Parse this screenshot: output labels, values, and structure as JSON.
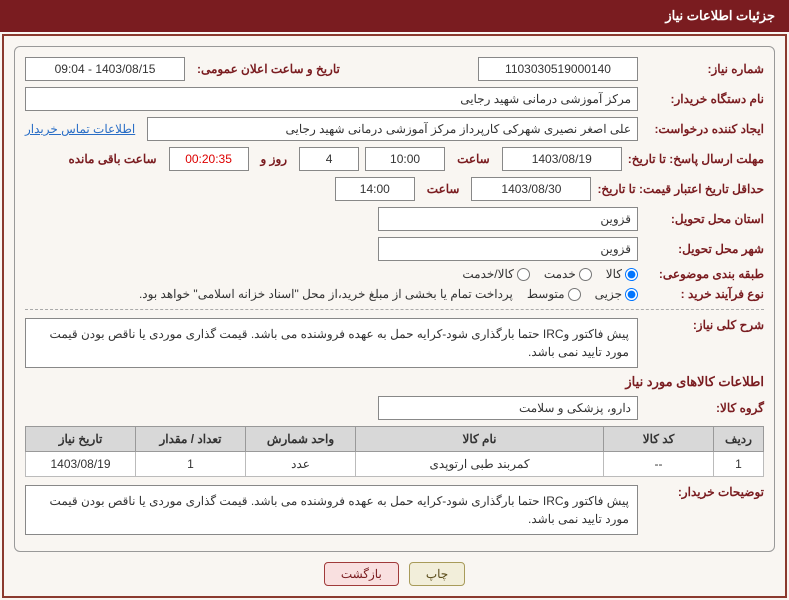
{
  "title": "جزئیات اطلاعات نیاز",
  "fields": {
    "need_number_label": "شماره نیاز:",
    "need_number": "1103030519000140",
    "announce_label": "تاریخ و ساعت اعلان عمومی:",
    "announce_value": "1403/08/15 - 09:04",
    "buyer_org_label": "نام دستگاه خریدار:",
    "buyer_org": "مرکز آموزشی درمانی شهید رجایی",
    "requester_label": "ایجاد کننده درخواست:",
    "requester": "علی اصغر نصیری شهرکی کارپرداز مرکز آموزشی درمانی شهید رجایی",
    "contact_link": "اطلاعات تماس خریدار",
    "response_deadline_label": "مهلت ارسال پاسخ: تا تاریخ:",
    "response_date": "1403/08/19",
    "time_label": "ساعت",
    "response_time": "10:00",
    "days_count": "4",
    "days_and": "روز و",
    "remaining_time": "00:20:35",
    "remaining_label": "ساعت باقی مانده",
    "validity_label": "حداقل تاریخ اعتبار قیمت: تا تاریخ:",
    "validity_date": "1403/08/30",
    "validity_time": "14:00",
    "province_label": "استان محل تحویل:",
    "province": "قزوین",
    "city_label": "شهر محل تحویل:",
    "city": "قزوین",
    "category_label": "طبقه بندی موضوعی:",
    "cat_goods": "کالا",
    "cat_service": "خدمت",
    "cat_both": "کالا/خدمت",
    "process_label": "نوع فرآیند خرید :",
    "proc_partial": "جزیی",
    "proc_medium": "متوسط",
    "process_note": "پرداخت تمام یا بخشی از مبلغ خرید،از محل \"اسناد خزانه اسلامی\" خواهد بود.",
    "summary_label": "شرح کلی نیاز:",
    "summary_text": "پیش فاکتور وIRC حتما بارگذاری شود-کرایه حمل به عهده فروشنده می باشد. قیمت گذاری موردی یا ناقص بودن قیمت مورد تایید نمی باشد.",
    "goods_info_title": "اطلاعات کالاهای مورد نیاز",
    "goods_group_label": "گروه کالا:",
    "goods_group": "دارو، پزشکی و سلامت",
    "buyer_notes_label": "توضیحات خریدار:",
    "buyer_notes_text": "پیش فاکتور وIRC حتما بارگذاری شود-کرایه حمل به عهده فروشنده می باشد. قیمت گذاری موردی یا ناقص بودن قیمت مورد تایید نمی باشد."
  },
  "table": {
    "headers": {
      "row": "ردیف",
      "code": "کد کالا",
      "name": "نام کالا",
      "unit": "واحد شمارش",
      "qty": "تعداد / مقدار",
      "date": "تاریخ نیاز"
    },
    "rows": [
      {
        "row": "1",
        "code": "--",
        "name": "کمربند طبی ارتوپدی",
        "unit": "عدد",
        "qty": "1",
        "date": "1403/08/19"
      }
    ]
  },
  "buttons": {
    "print": "چاپ",
    "back": "بازگشت"
  },
  "colors": {
    "primary": "#7a1c20",
    "border": "#8b3a2f",
    "link": "#2a6ec6"
  }
}
